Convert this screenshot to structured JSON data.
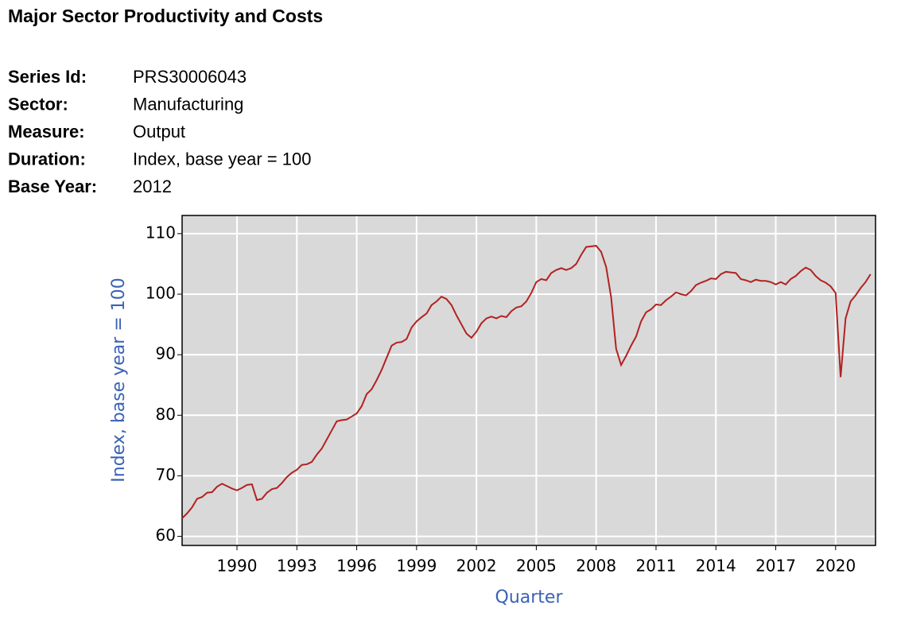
{
  "header": {
    "title": "Major Sector Productivity and Costs",
    "rows": [
      {
        "label": "Series Id:",
        "value": "PRS30006043"
      },
      {
        "label": "Sector:",
        "value": "Manufacturing"
      },
      {
        "label": "Measure:",
        "value": "Output"
      },
      {
        "label": "Duration:",
        "value": "Index, base year = 100"
      },
      {
        "label": "Base Year:",
        "value": "2012"
      }
    ]
  },
  "chart_data": {
    "type": "line",
    "xlabel": "Quarter",
    "ylabel": "Index, base year = 100",
    "xlim": [
      1987.25,
      2022
    ],
    "ylim": [
      58.5,
      113
    ],
    "xticks": [
      1990,
      1993,
      1996,
      1999,
      2002,
      2005,
      2008,
      2011,
      2014,
      2017,
      2020
    ],
    "yticks": [
      60,
      70,
      80,
      90,
      100,
      110
    ],
    "grid": true,
    "x": [
      1987.25,
      1987.5,
      1987.75,
      1988,
      1988.25,
      1988.5,
      1988.75,
      1989,
      1989.25,
      1989.5,
      1989.75,
      1990,
      1990.25,
      1990.5,
      1990.75,
      1991,
      1991.25,
      1991.5,
      1991.75,
      1992,
      1992.25,
      1992.5,
      1992.75,
      1993,
      1993.25,
      1993.5,
      1993.75,
      1994,
      1994.25,
      1994.5,
      1994.75,
      1995,
      1995.25,
      1995.5,
      1995.75,
      1996,
      1996.25,
      1996.5,
      1996.75,
      1997,
      1997.25,
      1997.5,
      1997.75,
      1998,
      1998.25,
      1998.5,
      1998.75,
      1999,
      1999.25,
      1999.5,
      1999.75,
      2000,
      2000.25,
      2000.5,
      2000.75,
      2001,
      2001.25,
      2001.5,
      2001.75,
      2002,
      2002.25,
      2002.5,
      2002.75,
      2003,
      2003.25,
      2003.5,
      2003.75,
      2004,
      2004.25,
      2004.5,
      2004.75,
      2005,
      2005.25,
      2005.5,
      2005.75,
      2006,
      2006.25,
      2006.5,
      2006.75,
      2007,
      2007.25,
      2007.5,
      2007.75,
      2008,
      2008.25,
      2008.5,
      2008.75,
      2009,
      2009.25,
      2009.5,
      2009.75,
      2010,
      2010.25,
      2010.5,
      2010.75,
      2011,
      2011.25,
      2011.5,
      2011.75,
      2012,
      2012.25,
      2012.5,
      2012.75,
      2013,
      2013.25,
      2013.5,
      2013.75,
      2014,
      2014.25,
      2014.5,
      2014.75,
      2015,
      2015.25,
      2015.5,
      2015.75,
      2016,
      2016.25,
      2016.5,
      2016.75,
      2017,
      2017.25,
      2017.5,
      2017.75,
      2018,
      2018.25,
      2018.5,
      2018.75,
      2019,
      2019.25,
      2019.5,
      2019.75,
      2020,
      2020.25,
      2020.5,
      2020.75,
      2021,
      2021.25,
      2021.5,
      2021.75
    ],
    "series": [
      {
        "name": "Output",
        "color": "#b22222",
        "values": [
          63,
          63.8,
          64.8,
          66.2,
          66.5,
          67.2,
          67.3,
          68.2,
          68.7,
          68.3,
          67.9,
          67.6,
          68.0,
          68.5,
          68.6,
          66.0,
          66.2,
          67.2,
          67.8,
          68.0,
          68.8,
          69.8,
          70.5,
          71.0,
          71.8,
          71.9,
          72.3,
          73.5,
          74.5,
          76.0,
          77.5,
          79.0,
          79.2,
          79.3,
          79.8,
          80.3,
          81.5,
          83.5,
          84.3,
          85.8,
          87.5,
          89.5,
          91.5,
          92.0,
          92.1,
          92.6,
          94.5,
          95.5,
          96.2,
          96.8,
          98.2,
          98.8,
          99.6,
          99.2,
          98.2,
          96.5,
          95.0,
          93.5,
          92.8,
          93.8,
          95.2,
          96.0,
          96.3,
          96.0,
          96.4,
          96.2,
          97.2,
          97.8,
          98.0,
          98.8,
          100.2,
          102.0,
          102.5,
          102.3,
          103.5,
          104.0,
          104.3,
          104.0,
          104.3,
          105.0,
          106.5,
          107.8,
          107.9,
          108.0,
          107.0,
          104.5,
          99.5,
          91.0,
          88.3,
          89.8,
          91.5,
          93.0,
          95.5,
          97.0,
          97.5,
          98.3,
          98.2,
          99.0,
          99.6,
          100.3,
          100.0,
          99.8,
          100.5,
          101.5,
          101.9,
          102.2,
          102.6,
          102.5,
          103.3,
          103.7,
          103.6,
          103.5,
          102.5,
          102.3,
          102.0,
          102.4,
          102.2,
          102.2,
          102.0,
          101.6,
          102.0,
          101.6,
          102.5,
          103.0,
          103.8,
          104.4,
          104.0,
          103.0,
          102.3,
          101.9,
          101.3,
          100.2,
          86.3,
          96.0,
          98.8,
          99.8,
          101.0,
          102.0,
          103.3
        ]
      }
    ]
  }
}
